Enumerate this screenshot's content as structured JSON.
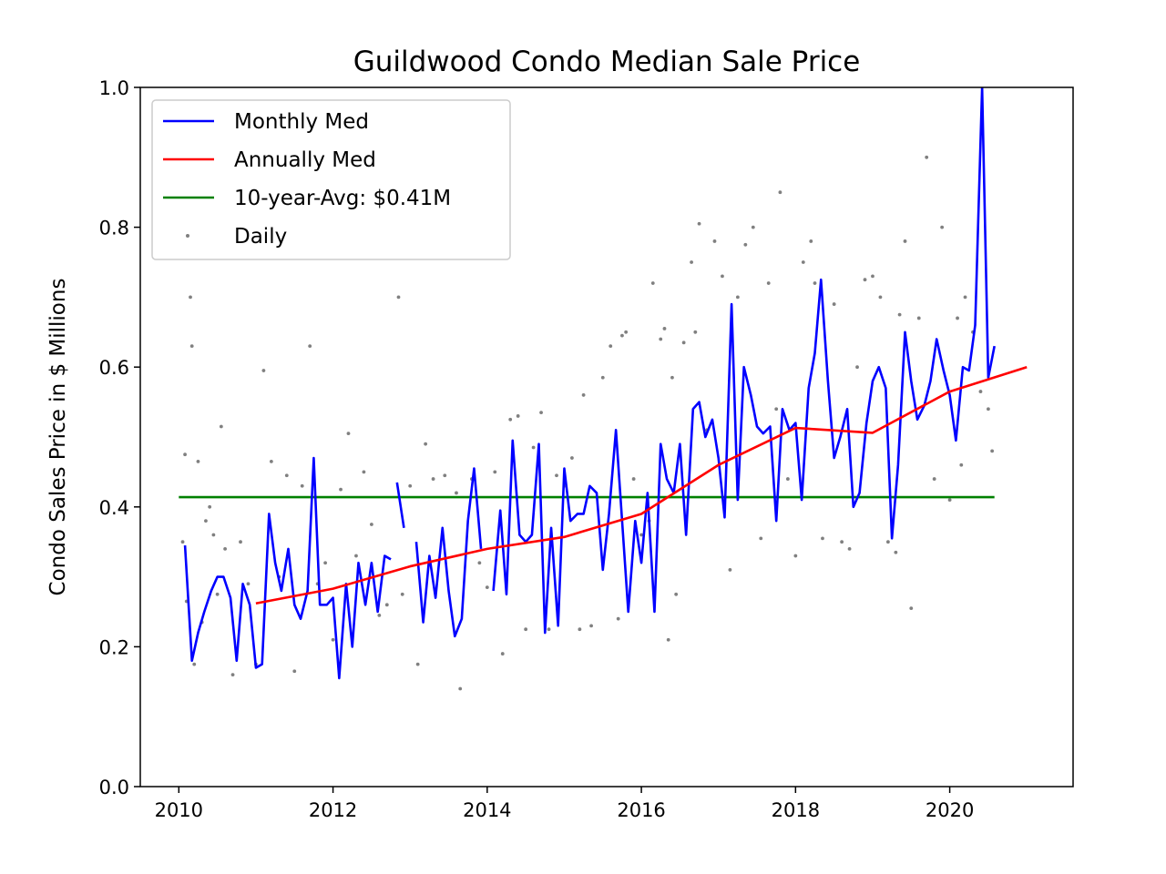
{
  "chart_data": {
    "type": "line",
    "title": "Guildwood Condo Median Sale Price",
    "xlabel": "",
    "ylabel": "Condo Sales Price in $ Millions",
    "xlim": [
      2009.5,
      2021.6
    ],
    "ylim": [
      0.0,
      1.0
    ],
    "x_ticks": [
      2010,
      2012,
      2014,
      2016,
      2018,
      2020
    ],
    "y_ticks": [
      "0.0",
      "0.2",
      "0.4",
      "0.6",
      "0.8",
      "1.0"
    ],
    "grid": false,
    "legend_position": "top-left",
    "legend": [
      {
        "label": "Monthly Med",
        "kind": "line",
        "color": "#0000ff"
      },
      {
        "label": "Annually Med",
        "kind": "line",
        "color": "#ff0000"
      },
      {
        "label": "10-year-Avg: $0.41M",
        "kind": "line",
        "color": "#008000"
      },
      {
        "label": "Daily",
        "kind": "dot",
        "color": "#808080"
      }
    ],
    "series": [
      {
        "name": "Monthly Med",
        "color": "#0000ff",
        "segments": [
          [
            [
              2010.08,
              0.345
            ],
            [
              2010.17,
              0.18
            ],
            [
              2010.25,
              0.22
            ],
            [
              2010.33,
              0.25
            ],
            [
              2010.42,
              0.28
            ],
            [
              2010.5,
              0.3
            ],
            [
              2010.58,
              0.3
            ],
            [
              2010.67,
              0.27
            ],
            [
              2010.75,
              0.18
            ],
            [
              2010.83,
              0.29
            ],
            [
              2010.92,
              0.26
            ],
            [
              2011.0,
              0.17
            ],
            [
              2011.08,
              0.175
            ],
            [
              2011.17,
              0.39
            ],
            [
              2011.25,
              0.32
            ],
            [
              2011.33,
              0.28
            ],
            [
              2011.42,
              0.34
            ],
            [
              2011.5,
              0.26
            ],
            [
              2011.58,
              0.24
            ],
            [
              2011.67,
              0.28
            ],
            [
              2011.75,
              0.47
            ],
            [
              2011.83,
              0.26
            ],
            [
              2011.92,
              0.26
            ],
            [
              2012.0,
              0.27
            ],
            [
              2012.08,
              0.155
            ],
            [
              2012.17,
              0.29
            ],
            [
              2012.25,
              0.2
            ],
            [
              2012.33,
              0.32
            ],
            [
              2012.42,
              0.26
            ],
            [
              2012.5,
              0.32
            ],
            [
              2012.58,
              0.25
            ],
            [
              2012.67,
              0.33
            ],
            [
              2012.75,
              0.325
            ]
          ],
          [
            [
              2012.83,
              0.435
            ],
            [
              2012.92,
              0.37
            ]
          ],
          [
            [
              2013.08,
              0.35
            ],
            [
              2013.17,
              0.235
            ],
            [
              2013.25,
              0.33
            ],
            [
              2013.33,
              0.27
            ],
            [
              2013.42,
              0.37
            ],
            [
              2013.5,
              0.28
            ],
            [
              2013.58,
              0.215
            ],
            [
              2013.67,
              0.24
            ],
            [
              2013.75,
              0.38
            ],
            [
              2013.83,
              0.455
            ],
            [
              2013.92,
              0.34
            ]
          ],
          [
            [
              2014.08,
              0.28
            ],
            [
              2014.17,
              0.395
            ],
            [
              2014.25,
              0.275
            ],
            [
              2014.33,
              0.495
            ],
            [
              2014.42,
              0.36
            ],
            [
              2014.5,
              0.35
            ],
            [
              2014.58,
              0.36
            ],
            [
              2014.67,
              0.49
            ],
            [
              2014.75,
              0.22
            ],
            [
              2014.83,
              0.37
            ],
            [
              2014.92,
              0.23
            ],
            [
              2015.0,
              0.455
            ],
            [
              2015.08,
              0.38
            ],
            [
              2015.17,
              0.39
            ],
            [
              2015.25,
              0.39
            ],
            [
              2015.33,
              0.43
            ],
            [
              2015.42,
              0.42
            ],
            [
              2015.5,
              0.31
            ],
            [
              2015.58,
              0.39
            ],
            [
              2015.67,
              0.51
            ],
            [
              2015.75,
              0.38
            ],
            [
              2015.83,
              0.25
            ],
            [
              2015.92,
              0.38
            ],
            [
              2016.0,
              0.32
            ],
            [
              2016.08,
              0.42
            ],
            [
              2016.17,
              0.25
            ],
            [
              2016.25,
              0.49
            ],
            [
              2016.33,
              0.44
            ],
            [
              2016.42,
              0.42
            ],
            [
              2016.5,
              0.49
            ],
            [
              2016.58,
              0.36
            ],
            [
              2016.67,
              0.54
            ],
            [
              2016.75,
              0.55
            ],
            [
              2016.83,
              0.5
            ],
            [
              2016.92,
              0.525
            ],
            [
              2017.0,
              0.47
            ],
            [
              2017.08,
              0.385
            ],
            [
              2017.17,
              0.69
            ],
            [
              2017.25,
              0.41
            ],
            [
              2017.33,
              0.6
            ],
            [
              2017.42,
              0.56
            ],
            [
              2017.5,
              0.515
            ],
            [
              2017.58,
              0.505
            ],
            [
              2017.67,
              0.515
            ],
            [
              2017.75,
              0.38
            ],
            [
              2017.83,
              0.54
            ],
            [
              2017.92,
              0.51
            ],
            [
              2018.0,
              0.52
            ],
            [
              2018.08,
              0.41
            ],
            [
              2018.17,
              0.57
            ],
            [
              2018.25,
              0.62
            ],
            [
              2018.33,
              0.725
            ],
            [
              2018.42,
              0.58
            ],
            [
              2018.5,
              0.47
            ],
            [
              2018.58,
              0.5
            ],
            [
              2018.67,
              0.54
            ],
            [
              2018.75,
              0.4
            ],
            [
              2018.83,
              0.42
            ],
            [
              2018.92,
              0.52
            ],
            [
              2019.0,
              0.58
            ],
            [
              2019.08,
              0.6
            ],
            [
              2019.17,
              0.57
            ],
            [
              2019.25,
              0.355
            ],
            [
              2019.33,
              0.46
            ],
            [
              2019.42,
              0.65
            ],
            [
              2019.5,
              0.58
            ],
            [
              2019.58,
              0.525
            ],
            [
              2019.67,
              0.545
            ],
            [
              2019.75,
              0.58
            ],
            [
              2019.83,
              0.64
            ],
            [
              2019.92,
              0.595
            ],
            [
              2020.0,
              0.56
            ],
            [
              2020.08,
              0.495
            ],
            [
              2020.17,
              0.6
            ],
            [
              2020.25,
              0.595
            ],
            [
              2020.33,
              0.66
            ],
            [
              2020.42,
              1.0
            ],
            [
              2020.5,
              0.585
            ],
            [
              2020.58,
              0.63
            ]
          ]
        ]
      },
      {
        "name": "Annually Med",
        "color": "#ff0000",
        "x": [
          2011,
          2012,
          2013,
          2014,
          2015,
          2016,
          2017,
          2018,
          2019,
          2020,
          2021
        ],
        "values": [
          0.262,
          0.283,
          0.315,
          0.34,
          0.357,
          0.39,
          0.46,
          0.513,
          0.506,
          0.565,
          0.6
        ]
      },
      {
        "name": "10-year-Avg: $0.41M",
        "color": "#008000",
        "x": [
          2010.0,
          2020.58
        ],
        "values": [
          0.414,
          0.414
        ]
      },
      {
        "name": "Daily",
        "color": "#808080",
        "points": [
          [
            2010.05,
            0.35
          ],
          [
            2010.08,
            0.475
          ],
          [
            2010.1,
            0.265
          ],
          [
            2010.15,
            0.7
          ],
          [
            2010.17,
            0.63
          ],
          [
            2010.2,
            0.175
          ],
          [
            2010.25,
            0.465
          ],
          [
            2010.3,
            0.235
          ],
          [
            2010.35,
            0.38
          ],
          [
            2010.4,
            0.4
          ],
          [
            2010.45,
            0.36
          ],
          [
            2010.5,
            0.275
          ],
          [
            2010.55,
            0.515
          ],
          [
            2010.6,
            0.34
          ],
          [
            2010.7,
            0.16
          ],
          [
            2010.8,
            0.35
          ],
          [
            2010.9,
            0.29
          ],
          [
            2011.0,
            0.175
          ],
          [
            2011.1,
            0.595
          ],
          [
            2011.2,
            0.465
          ],
          [
            2011.3,
            0.3
          ],
          [
            2011.4,
            0.445
          ],
          [
            2011.5,
            0.165
          ],
          [
            2011.6,
            0.43
          ],
          [
            2011.7,
            0.63
          ],
          [
            2011.8,
            0.29
          ],
          [
            2011.9,
            0.32
          ],
          [
            2012.0,
            0.21
          ],
          [
            2012.1,
            0.425
          ],
          [
            2012.2,
            0.505
          ],
          [
            2012.3,
            0.33
          ],
          [
            2012.4,
            0.45
          ],
          [
            2012.5,
            0.375
          ],
          [
            2012.6,
            0.245
          ],
          [
            2012.7,
            0.26
          ],
          [
            2012.85,
            0.7
          ],
          [
            2012.9,
            0.275
          ],
          [
            2013.0,
            0.43
          ],
          [
            2013.1,
            0.175
          ],
          [
            2013.2,
            0.49
          ],
          [
            2013.3,
            0.44
          ],
          [
            2013.45,
            0.445
          ],
          [
            2013.6,
            0.42
          ],
          [
            2013.65,
            0.14
          ],
          [
            2013.8,
            0.44
          ],
          [
            2013.9,
            0.32
          ],
          [
            2014.0,
            0.285
          ],
          [
            2014.1,
            0.45
          ],
          [
            2014.2,
            0.19
          ],
          [
            2014.3,
            0.525
          ],
          [
            2014.4,
            0.53
          ],
          [
            2014.5,
            0.225
          ],
          [
            2014.6,
            0.485
          ],
          [
            2014.7,
            0.535
          ],
          [
            2014.8,
            0.225
          ],
          [
            2014.9,
            0.445
          ],
          [
            2015.0,
            0.43
          ],
          [
            2015.1,
            0.47
          ],
          [
            2015.2,
            0.225
          ],
          [
            2015.25,
            0.56
          ],
          [
            2015.35,
            0.23
          ],
          [
            2015.5,
            0.585
          ],
          [
            2015.6,
            0.63
          ],
          [
            2015.7,
            0.24
          ],
          [
            2015.75,
            0.645
          ],
          [
            2015.8,
            0.65
          ],
          [
            2015.9,
            0.44
          ],
          [
            2016.0,
            0.36
          ],
          [
            2016.1,
            0.38
          ],
          [
            2016.15,
            0.72
          ],
          [
            2016.25,
            0.64
          ],
          [
            2016.3,
            0.655
          ],
          [
            2016.35,
            0.21
          ],
          [
            2016.4,
            0.585
          ],
          [
            2016.45,
            0.275
          ],
          [
            2016.55,
            0.635
          ],
          [
            2016.65,
            0.75
          ],
          [
            2016.7,
            0.65
          ],
          [
            2016.75,
            0.805
          ],
          [
            2016.85,
            0.51
          ],
          [
            2016.95,
            0.78
          ],
          [
            2017.05,
            0.73
          ],
          [
            2017.15,
            0.31
          ],
          [
            2017.25,
            0.7
          ],
          [
            2017.35,
            0.775
          ],
          [
            2017.45,
            0.8
          ],
          [
            2017.55,
            0.355
          ],
          [
            2017.65,
            0.72
          ],
          [
            2017.75,
            0.54
          ],
          [
            2017.8,
            0.85
          ],
          [
            2017.9,
            0.44
          ],
          [
            2018.0,
            0.33
          ],
          [
            2018.1,
            0.75
          ],
          [
            2018.2,
            0.78
          ],
          [
            2018.25,
            0.72
          ],
          [
            2018.35,
            0.355
          ],
          [
            2018.5,
            0.69
          ],
          [
            2018.6,
            0.35
          ],
          [
            2018.7,
            0.34
          ],
          [
            2018.8,
            0.6
          ],
          [
            2018.9,
            0.725
          ],
          [
            2019.0,
            0.73
          ],
          [
            2019.1,
            0.7
          ],
          [
            2019.2,
            0.35
          ],
          [
            2019.3,
            0.335
          ],
          [
            2019.35,
            0.675
          ],
          [
            2019.42,
            0.78
          ],
          [
            2019.5,
            0.255
          ],
          [
            2019.6,
            0.67
          ],
          [
            2019.7,
            0.9
          ],
          [
            2019.8,
            0.44
          ],
          [
            2019.9,
            0.8
          ],
          [
            2020.0,
            0.41
          ],
          [
            2020.1,
            0.67
          ],
          [
            2020.15,
            0.46
          ],
          [
            2020.2,
            0.7
          ],
          [
            2020.3,
            0.65
          ],
          [
            2020.4,
            0.565
          ],
          [
            2020.5,
            0.54
          ],
          [
            2020.55,
            0.48
          ]
        ]
      }
    ]
  }
}
